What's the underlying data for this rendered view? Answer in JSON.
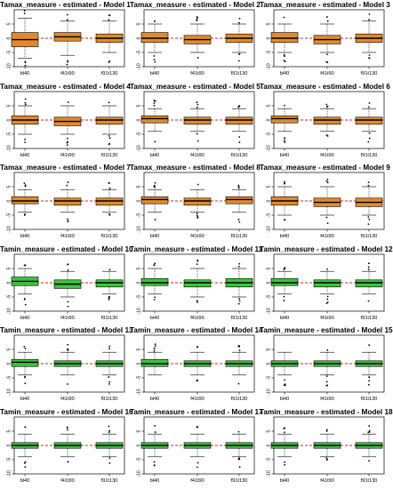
{
  "colors": {
    "tamax": "#e08a2c",
    "tamin": "#3cc43c",
    "reference_line": "#e02020"
  },
  "chart_data": [
    {
      "type": "box",
      "title": "Tamax_measure - estimated - Model 1",
      "categories": [
        "bl40",
        "f41t90",
        "f91t130"
      ],
      "ylim": [
        -10,
        10
      ],
      "yticks": [
        -10,
        -5,
        0,
        5
      ],
      "reference_y": 0,
      "boxes": [
        {
          "q1": -3,
          "median": -0.5,
          "q3": 2,
          "whisker_low": -7,
          "whisker_high": 7
        },
        {
          "q1": -1,
          "median": 0.5,
          "q3": 2,
          "whisker_low": -6,
          "whisker_high": 6
        },
        {
          "q1": -1.5,
          "median": 0,
          "q3": 1.5,
          "whisker_low": -5,
          "whisker_high": 6
        }
      ]
    },
    {
      "type": "box",
      "title": "Tamax_measure - estimated - Model 2",
      "categories": [
        "bl40",
        "f41t90",
        "f91t130"
      ],
      "ylim": [
        -10,
        10
      ],
      "yticks": [
        -10,
        -5,
        0,
        5
      ],
      "reference_y": 0,
      "boxes": [
        {
          "q1": -1.5,
          "median": 0,
          "q3": 2,
          "whisker_low": -5,
          "whisker_high": 5
        },
        {
          "q1": -2,
          "median": -0.5,
          "q3": 1,
          "whisker_low": -5,
          "whisker_high": 5
        },
        {
          "q1": -1.5,
          "median": 0,
          "q3": 1.5,
          "whisker_low": -5,
          "whisker_high": 5
        }
      ]
    },
    {
      "type": "box",
      "title": "Tamax_measure - estimated - Model 3",
      "categories": [
        "bl40",
        "f41t90",
        "f91t130"
      ],
      "ylim": [
        -10,
        10
      ],
      "yticks": [
        -10,
        -5,
        0,
        5
      ],
      "reference_y": 0,
      "boxes": [
        {
          "q1": -1.5,
          "median": 0,
          "q3": 2,
          "whisker_low": -5,
          "whisker_high": 5
        },
        {
          "q1": -2,
          "median": -0.5,
          "q3": 1,
          "whisker_low": -5,
          "whisker_high": 5
        },
        {
          "q1": -1.5,
          "median": 0,
          "q3": 1.5,
          "whisker_low": -5,
          "whisker_high": 6
        }
      ]
    },
    {
      "type": "box",
      "title": "Tamax_measure - estimated - Model 4",
      "categories": [
        "bl40",
        "f41t90",
        "f91t130"
      ],
      "ylim": [
        -10,
        10
      ],
      "yticks": [
        -10,
        -5,
        0,
        5
      ],
      "reference_y": 0,
      "boxes": [
        {
          "q1": -1.5,
          "median": 0,
          "q3": 1.5,
          "whisker_low": -5,
          "whisker_high": 5
        },
        {
          "q1": -2,
          "median": -0.5,
          "q3": 1,
          "whisker_low": -5,
          "whisker_high": 5
        },
        {
          "q1": -1.5,
          "median": 0,
          "q3": 1,
          "whisker_low": -5,
          "whisker_high": 5
        }
      ]
    },
    {
      "type": "box",
      "title": "Tamax_measure - estimated - Model 5",
      "categories": [
        "bl40",
        "f41t90",
        "f91t130"
      ],
      "ylim": [
        -10,
        10
      ],
      "yticks": [
        -10,
        -5,
        0,
        5
      ],
      "reference_y": 0,
      "boxes": [
        {
          "q1": -1,
          "median": 0.5,
          "q3": 1.5,
          "whisker_low": -4,
          "whisker_high": 4
        },
        {
          "q1": -1.5,
          "median": 0,
          "q3": 1,
          "whisker_low": -4,
          "whisker_high": 4
        },
        {
          "q1": -1.5,
          "median": 0,
          "q3": 1,
          "whisker_low": -4,
          "whisker_high": 4
        }
      ]
    },
    {
      "type": "box",
      "title": "Tamax_measure - estimated - Model 6",
      "categories": [
        "bl40",
        "f41t90",
        "f91t130"
      ],
      "ylim": [
        -10,
        10
      ],
      "yticks": [
        -10,
        -5,
        0,
        5
      ],
      "reference_y": 0,
      "boxes": [
        {
          "q1": -1,
          "median": 0.5,
          "q3": 1.5,
          "whisker_low": -4,
          "whisker_high": 4
        },
        {
          "q1": -1.5,
          "median": 0,
          "q3": 1,
          "whisker_low": -4,
          "whisker_high": 4
        },
        {
          "q1": -1.5,
          "median": 0,
          "q3": 1,
          "whisker_low": -4,
          "whisker_high": 4
        }
      ]
    },
    {
      "type": "box",
      "title": "Tamax_measure - estimated - Model 7",
      "categories": [
        "bl40",
        "f41t90",
        "f91t130"
      ],
      "ylim": [
        -10,
        10
      ],
      "yticks": [
        -10,
        -5,
        0,
        5
      ],
      "reference_y": 0,
      "boxes": [
        {
          "q1": -1,
          "median": 0,
          "q3": 1.5,
          "whisker_low": -4,
          "whisker_high": 4
        },
        {
          "q1": -1.5,
          "median": 0,
          "q3": 1,
          "whisker_low": -4,
          "whisker_high": 4
        },
        {
          "q1": -1.5,
          "median": 0,
          "q3": 1,
          "whisker_low": -4,
          "whisker_high": 4
        }
      ]
    },
    {
      "type": "box",
      "title": "Tamax_measure - estimated - Model 8",
      "categories": [
        "bl40",
        "f41t90",
        "f91t130"
      ],
      "ylim": [
        -10,
        10
      ],
      "yticks": [
        -10,
        -5,
        0,
        5
      ],
      "reference_y": 0,
      "boxes": [
        {
          "q1": -1,
          "median": 0.5,
          "q3": 1.5,
          "whisker_low": -4,
          "whisker_high": 4
        },
        {
          "q1": -1.5,
          "median": 0,
          "q3": 1,
          "whisker_low": -4,
          "whisker_high": 4
        },
        {
          "q1": -1,
          "median": 0.5,
          "q3": 1.5,
          "whisker_low": -4,
          "whisker_high": 4
        }
      ]
    },
    {
      "type": "box",
      "title": "Tamax_measure - estimated - Model 9",
      "categories": [
        "bl40",
        "f41t90",
        "f91t130"
      ],
      "ylim": [
        -10,
        10
      ],
      "yticks": [
        -10,
        -5,
        0,
        5
      ],
      "reference_y": 0,
      "boxes": [
        {
          "q1": -1.5,
          "median": 0,
          "q3": 1.5,
          "whisker_low": -5,
          "whisker_high": 5
        },
        {
          "q1": -2,
          "median": -0.5,
          "q3": 1,
          "whisker_low": -5,
          "whisker_high": 5
        },
        {
          "q1": -2,
          "median": -0.5,
          "q3": 1,
          "whisker_low": -5,
          "whisker_high": 5
        }
      ]
    },
    {
      "type": "box",
      "title": "Tamin_measure - estimated - Model 10",
      "categories": [
        "bl40",
        "f41t90",
        "f91t130"
      ],
      "ylim": [
        -10,
        10
      ],
      "yticks": [
        -10,
        -5,
        0,
        5
      ],
      "reference_y": 0,
      "boxes": [
        {
          "q1": -1,
          "median": 0.5,
          "q3": 2,
          "whisker_low": -4,
          "whisker_high": 5
        },
        {
          "q1": -2,
          "median": -0.5,
          "q3": 1,
          "whisker_low": -5,
          "whisker_high": 4
        },
        {
          "q1": -1.5,
          "median": 0,
          "q3": 1,
          "whisker_low": -4,
          "whisker_high": 4
        }
      ]
    },
    {
      "type": "box",
      "title": "Tamin_measure - estimated - Model 11",
      "categories": [
        "bl40",
        "f41t90",
        "f91t130"
      ],
      "ylim": [
        -10,
        10
      ],
      "yticks": [
        -10,
        -5,
        0,
        5
      ],
      "reference_y": 0,
      "boxes": [
        {
          "q1": -1,
          "median": 0,
          "q3": 1.5,
          "whisker_low": -4,
          "whisker_high": 5
        },
        {
          "q1": -1.5,
          "median": 0,
          "q3": 1,
          "whisker_low": -5,
          "whisker_high": 5
        },
        {
          "q1": -1.5,
          "median": 0,
          "q3": 1.5,
          "whisker_low": -5,
          "whisker_high": 5
        }
      ]
    },
    {
      "type": "box",
      "title": "Tamin_measure - estimated - Model 12",
      "categories": [
        "bl40",
        "f41t90",
        "f91t130"
      ],
      "ylim": [
        -10,
        10
      ],
      "yticks": [
        -10,
        -5,
        0,
        5
      ],
      "reference_y": 0,
      "boxes": [
        {
          "q1": -1,
          "median": 0,
          "q3": 1.5,
          "whisker_low": -4,
          "whisker_high": 4
        },
        {
          "q1": -1.5,
          "median": 0,
          "q3": 1,
          "whisker_low": -4,
          "whisker_high": 4
        },
        {
          "q1": -1.5,
          "median": 0,
          "q3": 1,
          "whisker_low": -4,
          "whisker_high": 4
        }
      ]
    },
    {
      "type": "box",
      "title": "Tamin_measure - estimated - Model 13",
      "categories": [
        "bl40",
        "f41t90",
        "f91t130"
      ],
      "ylim": [
        -10,
        10
      ],
      "yticks": [
        -10,
        -5,
        0,
        5
      ],
      "reference_y": 0,
      "boxes": [
        {
          "q1": -1,
          "median": 0.5,
          "q3": 1.5,
          "whisker_low": -4,
          "whisker_high": 4
        },
        {
          "q1": -1,
          "median": 0,
          "q3": 1,
          "whisker_low": -4,
          "whisker_high": 4
        },
        {
          "q1": -1,
          "median": 0,
          "q3": 1,
          "whisker_low": -4,
          "whisker_high": 4
        }
      ]
    },
    {
      "type": "box",
      "title": "Tamin_measure - estimated - Model 14",
      "categories": [
        "bl40",
        "f41t90",
        "f91t130"
      ],
      "ylim": [
        -10,
        10
      ],
      "yticks": [
        -10,
        -5,
        0,
        5
      ],
      "reference_y": 0,
      "boxes": [
        {
          "q1": -1,
          "median": 0,
          "q3": 1.5,
          "whisker_low": -4,
          "whisker_high": 4
        },
        {
          "q1": -1,
          "median": 0,
          "q3": 1,
          "whisker_low": -4,
          "whisker_high": 4
        },
        {
          "q1": -1,
          "median": 0,
          "q3": 1,
          "whisker_low": -4,
          "whisker_high": 4
        }
      ]
    },
    {
      "type": "box",
      "title": "Tamin_measure - estimated - Model 15",
      "categories": [
        "bl40",
        "f41t90",
        "f91t130"
      ],
      "ylim": [
        -10,
        10
      ],
      "yticks": [
        -10,
        -5,
        0,
        5
      ],
      "reference_y": 0,
      "boxes": [
        {
          "q1": -1,
          "median": 0,
          "q3": 1,
          "whisker_low": -4,
          "whisker_high": 4
        },
        {
          "q1": -1,
          "median": 0,
          "q3": 1,
          "whisker_low": -4,
          "whisker_high": 4
        },
        {
          "q1": -1,
          "median": 0,
          "q3": 1,
          "whisker_low": -4,
          "whisker_high": 4
        }
      ]
    },
    {
      "type": "box",
      "title": "Tamin_measure - estimated - Model 16",
      "categories": [
        "bl40",
        "f41t90",
        "f91t130"
      ],
      "ylim": [
        -10,
        10
      ],
      "yticks": [
        -10,
        -5,
        0,
        5
      ],
      "reference_y": 0,
      "boxes": [
        {
          "q1": -1,
          "median": 0,
          "q3": 1,
          "whisker_low": -4,
          "whisker_high": 4
        },
        {
          "q1": -1,
          "median": 0,
          "q3": 1,
          "whisker_low": -4,
          "whisker_high": 4
        },
        {
          "q1": -1,
          "median": 0,
          "q3": 1,
          "whisker_low": -4,
          "whisker_high": 4
        }
      ]
    },
    {
      "type": "box",
      "title": "Tamin_measure - estimated - Model 17",
      "categories": [
        "bl40",
        "f41t90",
        "f91t130"
      ],
      "ylim": [
        -10,
        10
      ],
      "yticks": [
        -10,
        -5,
        0,
        5
      ],
      "reference_y": 0,
      "boxes": [
        {
          "q1": -1,
          "median": 0,
          "q3": 1,
          "whisker_low": -4,
          "whisker_high": 4
        },
        {
          "q1": -1,
          "median": 0,
          "q3": 1,
          "whisker_low": -4,
          "whisker_high": 4
        },
        {
          "q1": -1,
          "median": 0,
          "q3": 1,
          "whisker_low": -4,
          "whisker_high": 4
        }
      ]
    },
    {
      "type": "box",
      "title": "Tamin_measure - estimated - Model 18",
      "categories": [
        "bl40",
        "f41t90",
        "f91t130"
      ],
      "ylim": [
        -10,
        10
      ],
      "yticks": [
        -10,
        -5,
        0,
        5
      ],
      "reference_y": 0,
      "boxes": [
        {
          "q1": -1,
          "median": 0,
          "q3": 1,
          "whisker_low": -4,
          "whisker_high": 4
        },
        {
          "q1": -1,
          "median": 0,
          "q3": 1,
          "whisker_low": -4,
          "whisker_high": 4
        },
        {
          "q1": -1,
          "median": 0,
          "q3": 1,
          "whisker_low": -4,
          "whisker_high": 4
        }
      ]
    }
  ]
}
